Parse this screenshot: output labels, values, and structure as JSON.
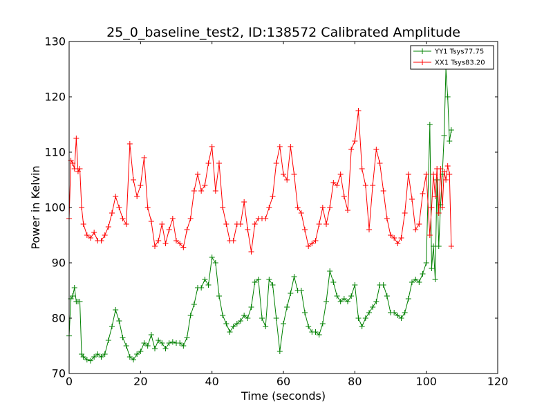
{
  "chart_data": {
    "type": "line",
    "title": "25_0_baseline_test2, ID:138572 Calibrated Amplitude",
    "xlabel": "Time (seconds)",
    "ylabel": "Power in Kelvin",
    "xlim": [
      0,
      120
    ],
    "ylim": [
      70,
      130
    ],
    "xticks": [
      0,
      20,
      40,
      60,
      80,
      100,
      120
    ],
    "yticks": [
      70,
      80,
      90,
      100,
      110,
      120,
      130
    ],
    "grid": false,
    "legend_position": "top-right",
    "series": [
      {
        "name": "YY1 Tsys77.75",
        "color": "#008000",
        "marker": "+",
        "x": [
          0,
          0.5,
          1,
          1.5,
          2,
          2.5,
          3,
          3.5,
          4,
          5,
          6,
          7,
          8,
          9,
          10,
          11,
          12,
          13,
          14,
          15,
          16,
          17,
          18,
          19,
          20,
          21,
          22,
          23,
          24,
          25,
          26,
          27,
          28,
          29,
          30,
          31,
          32,
          33,
          34,
          35,
          36,
          37,
          38,
          39,
          40,
          41,
          42,
          43,
          44,
          45,
          46,
          47,
          48,
          49,
          50,
          51,
          52,
          53,
          54,
          55,
          56,
          57,
          58,
          59,
          60,
          61,
          62,
          63,
          64,
          65,
          66,
          67,
          68,
          69,
          70,
          71,
          72,
          73,
          74,
          75,
          76,
          77,
          78,
          79,
          80,
          81,
          82,
          83,
          84,
          85,
          86,
          87,
          88,
          89,
          90,
          91,
          92,
          93,
          94,
          95,
          96,
          97,
          98,
          99,
          100,
          101,
          101.5,
          102,
          102.5,
          103,
          103.5,
          104,
          104.5,
          105,
          105.5,
          106,
          106.5,
          107
        ],
        "values": [
          76.8,
          83.5,
          84,
          85.5,
          83,
          83,
          83,
          73.5,
          73,
          72.5,
          72.3,
          73,
          73.5,
          73,
          73.5,
          76,
          78.5,
          81.5,
          79.5,
          76.5,
          75,
          73,
          72.5,
          73.5,
          74,
          75.5,
          75,
          77,
          74.5,
          76,
          75.5,
          74.5,
          75.5,
          75.7,
          75.5,
          75.5,
          75,
          76.5,
          80.5,
          82.5,
          85.5,
          85.5,
          87,
          86,
          91,
          90,
          84,
          80.5,
          79,
          77.5,
          78.5,
          79,
          79.5,
          80.5,
          80,
          82,
          86.5,
          87,
          80,
          78.5,
          87,
          86,
          80,
          74,
          79,
          82,
          84.5,
          87.5,
          85,
          85,
          81,
          78.5,
          77.5,
          77.5,
          77,
          79,
          83,
          88.5,
          86.5,
          84,
          83,
          83.5,
          83,
          84,
          86,
          80,
          78.5,
          80,
          81,
          82,
          83,
          86,
          86,
          84,
          81,
          81,
          80.5,
          80,
          81,
          83.5,
          86.5,
          87,
          86.5,
          88,
          90,
          115,
          89,
          93,
          87,
          105,
          93,
          100.5,
          106,
          113,
          125,
          120,
          112,
          114
        ]
      },
      {
        "name": "XX1 Tsys83.20",
        "color": "#ff0000",
        "marker": "+",
        "x": [
          0,
          0.5,
          1,
          1.5,
          2,
          2.5,
          3,
          3.5,
          4,
          5,
          6,
          7,
          8,
          9,
          10,
          11,
          12,
          13,
          14,
          15,
          16,
          17,
          18,
          19,
          20,
          21,
          22,
          23,
          24,
          25,
          26,
          27,
          28,
          29,
          30,
          31,
          32,
          33,
          34,
          35,
          36,
          37,
          38,
          39,
          40,
          41,
          42,
          43,
          44,
          45,
          46,
          47,
          48,
          49,
          50,
          51,
          52,
          53,
          54,
          55,
          56,
          57,
          58,
          59,
          60,
          61,
          62,
          63,
          64,
          65,
          66,
          67,
          68,
          69,
          70,
          71,
          72,
          73,
          74,
          75,
          76,
          77,
          78,
          79,
          80,
          81,
          82,
          83,
          84,
          85,
          86,
          87,
          88,
          89,
          90,
          91,
          92,
          93,
          94,
          95,
          96,
          97,
          98,
          99,
          100,
          101,
          101.5,
          102,
          102.5,
          103,
          103.5,
          104,
          104.5,
          105,
          105.5,
          106,
          106.5,
          107
        ],
        "values": [
          98,
          108.5,
          108,
          107,
          112.5,
          106.5,
          107,
          100,
          97,
          95,
          94.5,
          95.5,
          94,
          94,
          95,
          96.5,
          99,
          102,
          100,
          98,
          97,
          111.5,
          105,
          102,
          104,
          109,
          100,
          97.5,
          93,
          94,
          97,
          93.5,
          96,
          98,
          94,
          93.5,
          92.8,
          96,
          98,
          103,
          106,
          103,
          104,
          108,
          111,
          103,
          108,
          100,
          97,
          94,
          94,
          97,
          97,
          101,
          96,
          92,
          97,
          98,
          98,
          98,
          100,
          102,
          108,
          111,
          106,
          105,
          111,
          106,
          100,
          99,
          96,
          93,
          93.5,
          94,
          97,
          100,
          97,
          100,
          104.5,
          104,
          106,
          102,
          99.5,
          110.5,
          112,
          117.5,
          107,
          104,
          96,
          104,
          110.5,
          108,
          103,
          98,
          95,
          94.5,
          93.5,
          94.5,
          99,
          106,
          101.5,
          96,
          97,
          102.5,
          106,
          95,
          100,
          106,
          102,
          107,
          99,
          107,
          100,
          106.5,
          105,
          107.5,
          106,
          93
        ]
      }
    ]
  }
}
